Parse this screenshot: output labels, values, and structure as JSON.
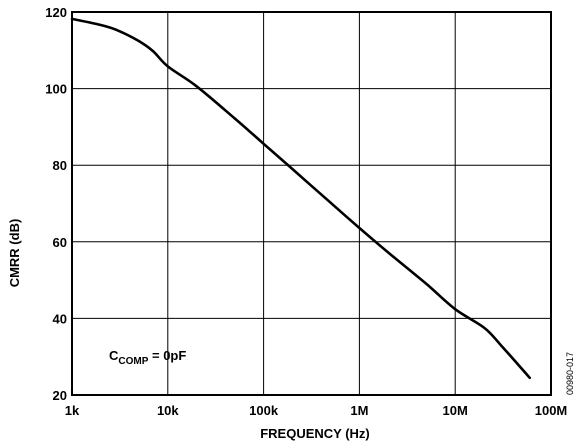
{
  "chart_data": {
    "type": "line",
    "xlabel": "FREQUENCY (Hz)",
    "ylabel": "CMRR (dB)",
    "x_scale": "log",
    "xlim": [
      1000,
      100000000
    ],
    "ylim": [
      20,
      120
    ],
    "grid": true,
    "x_ticks": [
      {
        "value": 1000,
        "label": "1k"
      },
      {
        "value": 10000,
        "label": "10k"
      },
      {
        "value": 100000,
        "label": "100k"
      },
      {
        "value": 1000000,
        "label": "1M"
      },
      {
        "value": 10000000,
        "label": "10M"
      },
      {
        "value": 100000000,
        "label": "100M"
      }
    ],
    "y_ticks": [
      {
        "value": 20,
        "label": "20"
      },
      {
        "value": 40,
        "label": "40"
      },
      {
        "value": 60,
        "label": "60"
      },
      {
        "value": 80,
        "label": "80"
      },
      {
        "value": 100,
        "label": "100"
      },
      {
        "value": 120,
        "label": "120"
      }
    ],
    "series": [
      {
        "color": "#000000",
        "x": [
          1000,
          2000,
          3000,
          5000,
          7000,
          10000,
          20000,
          50000,
          100000,
          200000,
          500000,
          1000000,
          2000000,
          5000000,
          10000000,
          20000000,
          30000000,
          60000000
        ],
        "y": [
          118.2,
          116.6,
          115.2,
          112.4,
          109.8,
          105.8,
          100.6,
          92.2,
          85.6,
          79.0,
          70.2,
          63.6,
          57.2,
          49.0,
          42.4,
          37.6,
          33.0,
          24.5
        ]
      }
    ],
    "annotations": [
      {
        "text_main": "C",
        "text_sub": "COMP",
        "text_rest": " = 0pF"
      }
    ],
    "figure_id": "00980-017"
  }
}
